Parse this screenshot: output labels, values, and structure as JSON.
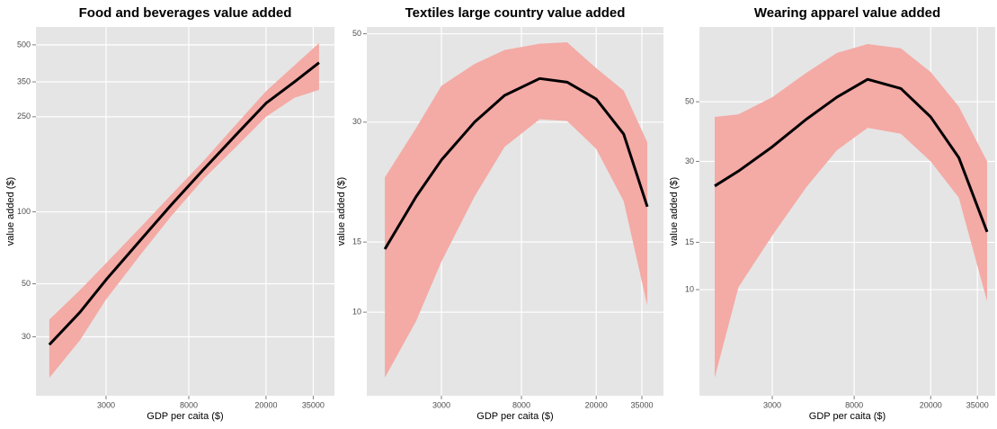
{
  "chart_data": [
    {
      "type": "line",
      "title": "Food and beverages value added",
      "xlabel": "GDP per caita ($)",
      "ylabel": "value added ($)",
      "x": [
        1530,
        2200,
        3000,
        4500,
        6500,
        9500,
        14000,
        20000,
        28000,
        37500
      ],
      "series": [
        {
          "color": "#000000",
          "band_color": "#f4aaa5",
          "values": [
            27.8,
            38,
            52,
            76,
            107,
            150,
            210,
            285,
            350,
            421
          ],
          "lower": [
            20.2,
            29,
            43,
            66,
            96,
            137,
            187,
            250,
            300,
            324
          ],
          "upper": [
            35.4,
            47,
            61,
            86,
            118,
            163,
            232,
            320,
            410,
            509
          ]
        }
      ],
      "xscale": "log",
      "yscale": "log",
      "xlim": [
        1306,
        45000
      ],
      "ylim": [
        17,
        594
      ],
      "xticks": [
        3000,
        8000,
        20000,
        35000
      ],
      "yticks": [
        30,
        50,
        100,
        250,
        350,
        500
      ],
      "grid": true
    },
    {
      "type": "line",
      "title": "Textiles large country value added",
      "xlabel": "GDP per caita ($)",
      "ylabel": "value added ($)",
      "x": [
        1500,
        2200,
        3000,
        4500,
        6500,
        10000,
        14000,
        20000,
        28000,
        37400
      ],
      "series": [
        {
          "color": "#000000",
          "band_color": "#f4aaa5",
          "values": [
            14.4,
            19.5,
            24.1,
            30,
            35,
            38.6,
            37.8,
            34.3,
            28,
            18.4
          ],
          "lower": [
            6.85,
            9.5,
            13.4,
            19.5,
            26,
            30.5,
            30.2,
            25.7,
            19,
            10.4
          ],
          "upper": [
            21.8,
            29,
            37,
            42,
            45.5,
            47.2,
            47.6,
            41,
            36,
            26.7
          ]
        }
      ],
      "xscale": "log",
      "yscale": "log",
      "xlim": [
        1202,
        45600
      ],
      "ylim": [
        6.17,
        52
      ],
      "xticks": [
        3000,
        8000,
        20000,
        35000
      ],
      "yticks": [
        10,
        15,
        30,
        50
      ],
      "grid": true
    },
    {
      "type": "line",
      "title": "Wearing apparel value added",
      "xlabel": "GDP per caita ($)",
      "ylabel": "value added ($)",
      "x": [
        1506,
        2000,
        3000,
        4500,
        6500,
        9400,
        14000,
        20000,
        28000,
        39300
      ],
      "series": [
        {
          "color": "#000000",
          "band_color": "#f4aaa5",
          "values": [
            24.3,
            27.6,
            34.0,
            43,
            52,
            60.6,
            56,
            43.9,
            31,
            16.4
          ],
          "lower": [
            4.7,
            10.2,
            15.9,
            24,
            33,
            40,
            38,
            30,
            22,
            9.05
          ],
          "upper": [
            43.9,
            44.9,
            52,
            64,
            76,
            82,
            79,
            64.5,
            48,
            30
          ]
        }
      ],
      "xscale": "log",
      "yscale": "log",
      "xlim": [
        1254,
        43300
      ],
      "ylim": [
        4.03,
        94.9
      ],
      "xticks": [
        3000,
        8000,
        20000,
        35000
      ],
      "yticks": [
        10,
        15,
        30,
        50
      ],
      "grid": true
    }
  ]
}
